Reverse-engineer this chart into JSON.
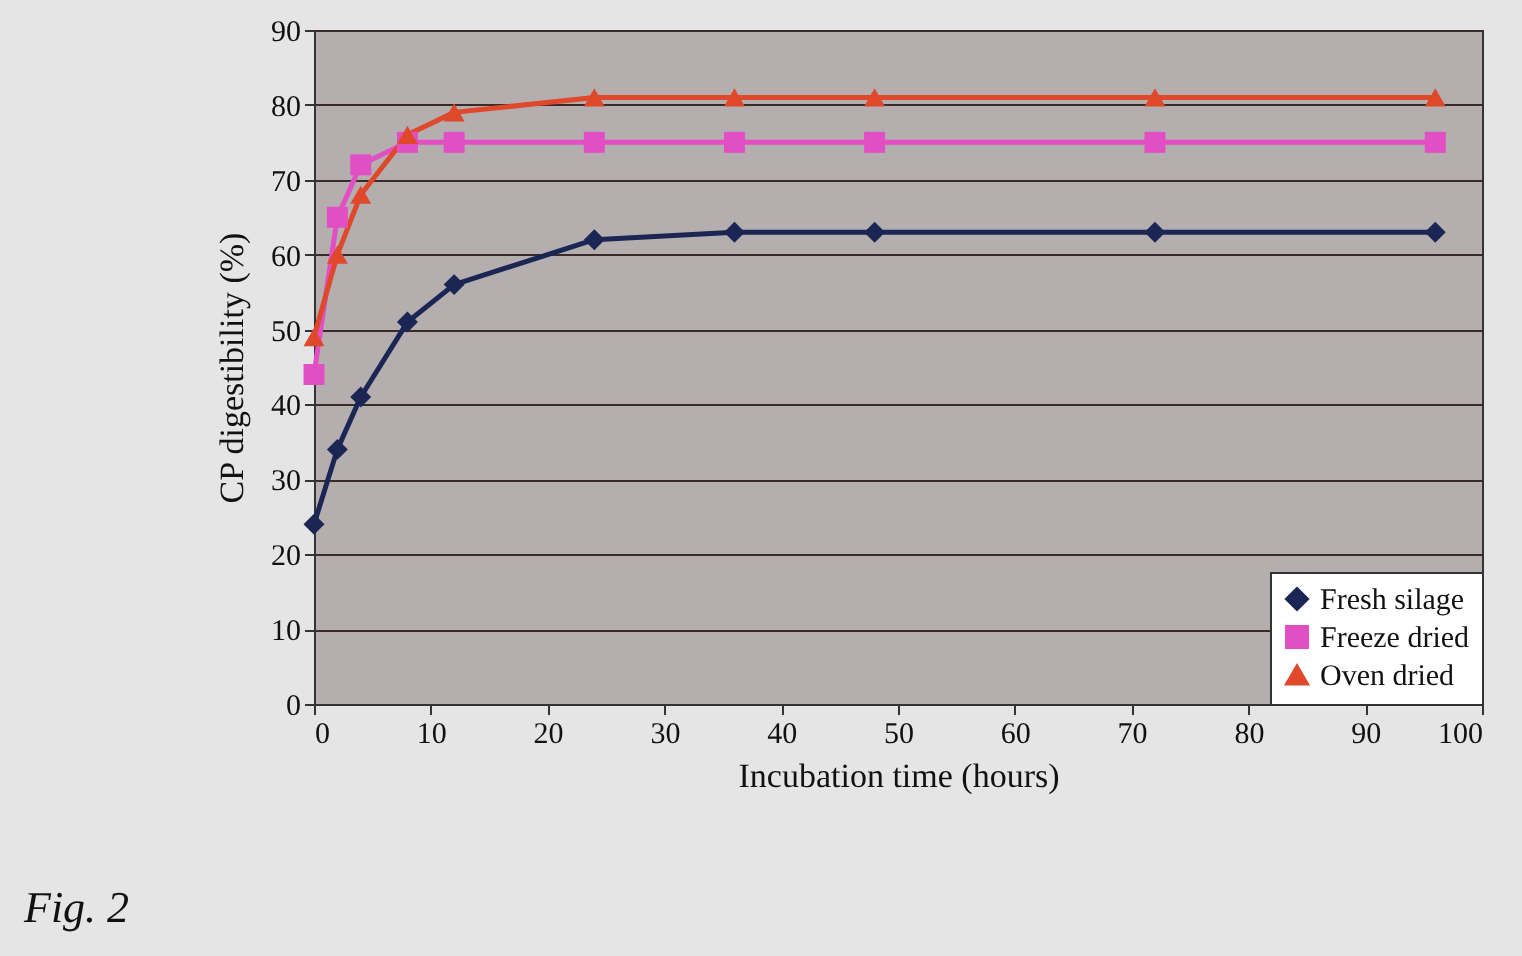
{
  "chart_data": {
    "type": "line",
    "xlabel": "Incubation time (hours)",
    "ylabel": "CP digestibility (%)",
    "x": [
      0,
      2,
      4,
      8,
      12,
      24,
      36,
      48,
      72,
      96
    ],
    "series": [
      {
        "name": "Fresh silage",
        "color": "#1c2654",
        "marker": "diamond",
        "values": [
          24,
          34,
          41,
          51,
          56,
          62,
          63,
          63,
          63,
          63
        ]
      },
      {
        "name": "Freeze dried",
        "color": "#e24fc4",
        "marker": "square",
        "values": [
          44,
          65,
          72,
          75,
          75,
          75,
          75,
          75,
          75,
          75
        ]
      },
      {
        "name": "Oven dried",
        "color": "#e0482c",
        "marker": "triangle",
        "values": [
          49,
          60,
          68,
          76,
          79,
          81,
          81,
          81,
          81,
          81
        ]
      }
    ],
    "xlim": [
      0,
      100
    ],
    "xticks": [
      0,
      10,
      20,
      30,
      40,
      50,
      60,
      70,
      80,
      90,
      100
    ],
    "ylim": [
      0,
      90
    ],
    "yticks": [
      0,
      10,
      20,
      30,
      40,
      50,
      60,
      70,
      80,
      90
    ],
    "grid": "y",
    "legend": "bottom right",
    "line_style": "solid",
    "annotations": [
      "Fig. 2"
    ]
  }
}
